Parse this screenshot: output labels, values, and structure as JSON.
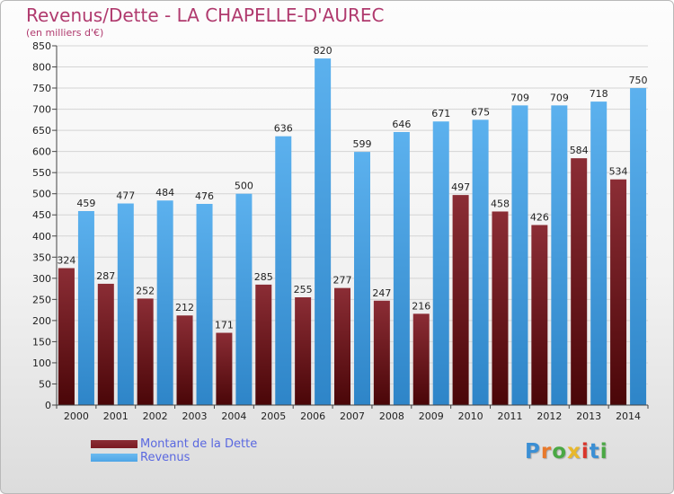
{
  "header": {
    "title": "Revenus/Dette - LA CHAPELLE-D'AUREC",
    "subtitle": "(en milliers d'€)"
  },
  "colors": {
    "dette": "#7a1a22",
    "revenus": "#4ea5e6"
  },
  "chart_data": {
    "type": "bar",
    "title": "Revenus/Dette - LA CHAPELLE-D'AUREC",
    "subtitle": "(en milliers d'€)",
    "categories": [
      "2000",
      "2001",
      "2002",
      "2003",
      "2004",
      "2005",
      "2006",
      "2007",
      "2008",
      "2009",
      "2010",
      "2011",
      "2012",
      "2013",
      "2014"
    ],
    "series": [
      {
        "name": "Montant de la Dette",
        "values": [
          324,
          287,
          252,
          212,
          171,
          285,
          255,
          277,
          247,
          216,
          497,
          458,
          426,
          584,
          534
        ]
      },
      {
        "name": "Revenus",
        "values": [
          459,
          477,
          484,
          476,
          500,
          636,
          820,
          599,
          646,
          671,
          675,
          709,
          709,
          718,
          750
        ]
      }
    ],
    "ylim": [
      0,
      850
    ],
    "yticks": [
      0,
      50,
      100,
      150,
      200,
      250,
      300,
      350,
      400,
      450,
      500,
      550,
      600,
      650,
      700,
      750,
      800,
      850
    ],
    "grid": true,
    "legend": "bottom-left"
  },
  "legend": {
    "items": [
      {
        "label": "Montant de la Dette"
      },
      {
        "label": "Revenus"
      }
    ]
  },
  "logo": {
    "text": "Proxiti"
  }
}
